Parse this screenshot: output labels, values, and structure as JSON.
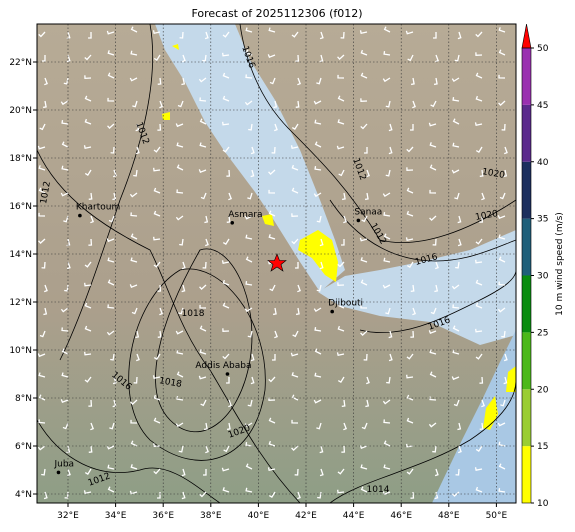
{
  "title": "Forecast of 2025112306 (f012)",
  "map": {
    "lon_ticks": [
      {
        "value": 32,
        "label": "32°E"
      },
      {
        "value": 34,
        "label": "34°E"
      },
      {
        "value": 36,
        "label": "36°E"
      },
      {
        "value": 38,
        "label": "38°E"
      },
      {
        "value": 40,
        "label": "40°E"
      },
      {
        "value": 42,
        "label": "42°E"
      },
      {
        "value": 44,
        "label": "44°E"
      },
      {
        "value": 46,
        "label": "46°E"
      },
      {
        "value": 48,
        "label": "48°E"
      },
      {
        "value": 50,
        "label": "50°E"
      }
    ],
    "lat_ticks": [
      {
        "value": 4,
        "label": "4°N"
      },
      {
        "value": 6,
        "label": "6°N"
      },
      {
        "value": 8,
        "label": "8°N"
      },
      {
        "value": 10,
        "label": "10°N"
      },
      {
        "value": 12,
        "label": "12°N"
      },
      {
        "value": 14,
        "label": "14°N"
      },
      {
        "value": 16,
        "label": "16°N"
      },
      {
        "value": 18,
        "label": "18°N"
      },
      {
        "value": 20,
        "label": "20°N"
      },
      {
        "value": 22,
        "label": "22°N"
      }
    ],
    "cities": [
      {
        "name": "Khartoum",
        "lon": 32.5,
        "lat": 15.6
      },
      {
        "name": "Asmara",
        "lon": 38.9,
        "lat": 15.3
      },
      {
        "name": "Sanaa",
        "lon": 44.2,
        "lat": 15.4
      },
      {
        "name": "Djibouti",
        "lon": 43.1,
        "lat": 11.6
      },
      {
        "name": "Addis Ababa",
        "lon": 38.7,
        "lat": 9.0
      },
      {
        "name": "Juba",
        "lon": 31.6,
        "lat": 4.9
      }
    ],
    "contour_labels": [
      "1016",
      "1012",
      "1012",
      "1012",
      "1020",
      "1020",
      "1016",
      "1016",
      "1018",
      "1018",
      "1016",
      "1020",
      "1012",
      "1014",
      "1012"
    ]
  },
  "colorbar": {
    "label": "10 m wind speed (m/s)",
    "ticks": [
      10,
      15,
      20,
      25,
      30,
      35,
      40,
      45,
      50
    ],
    "colors": [
      "#ffff00",
      "#9acd32",
      "#4cb81a",
      "#0a8c10",
      "#1f5f7a",
      "#1c2f5e",
      "#5b2a8c",
      "#9a30b0"
    ],
    "extend_color": "#ff0000"
  }
}
